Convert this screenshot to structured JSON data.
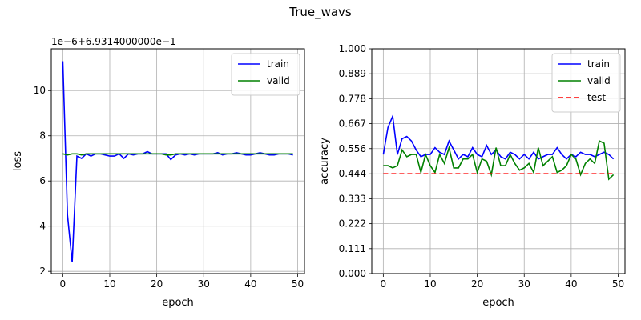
{
  "figure": {
    "title": "True_wavs"
  },
  "colors": {
    "train": "#0000ff",
    "valid": "#008000",
    "test": "#ff0000",
    "grid": "#b0b0b0",
    "axis": "#000000"
  },
  "chart_data": [
    {
      "type": "line",
      "title": "",
      "xlabel": "epoch",
      "ylabel": "loss",
      "offset_text": "1e−6+6.9314000000e−1",
      "xlim": [
        -2.45,
        51.45
      ],
      "ylim": [
        1.9,
        11.85
      ],
      "xticks": [
        0,
        10,
        20,
        30,
        40,
        50
      ],
      "yticks": [
        2,
        4,
        6,
        8,
        10
      ],
      "grid": true,
      "legend_position": "top-right",
      "x": [
        0,
        1,
        2,
        3,
        4,
        5,
        6,
        7,
        8,
        9,
        10,
        11,
        12,
        13,
        14,
        15,
        16,
        17,
        18,
        19,
        20,
        21,
        22,
        23,
        24,
        25,
        26,
        27,
        28,
        29,
        30,
        31,
        32,
        33,
        34,
        35,
        36,
        37,
        38,
        39,
        40,
        41,
        42,
        43,
        44,
        45,
        46,
        47,
        48,
        49
      ],
      "series": [
        {
          "name": "train",
          "color": "train",
          "style": "solid",
          "values": [
            11.3,
            4.5,
            2.4,
            7.1,
            7.0,
            7.2,
            7.1,
            7.2,
            7.2,
            7.15,
            7.1,
            7.1,
            7.2,
            7.0,
            7.2,
            7.15,
            7.2,
            7.2,
            7.3,
            7.2,
            7.2,
            7.2,
            7.2,
            6.95,
            7.15,
            7.2,
            7.15,
            7.2,
            7.15,
            7.2,
            7.2,
            7.2,
            7.2,
            7.25,
            7.15,
            7.2,
            7.2,
            7.25,
            7.2,
            7.15,
            7.15,
            7.2,
            7.25,
            7.2,
            7.15,
            7.15,
            7.2,
            7.2,
            7.2,
            7.15
          ]
        },
        {
          "name": "valid",
          "color": "valid",
          "style": "solid",
          "values": [
            7.2,
            7.15,
            7.2,
            7.2,
            7.15,
            7.2,
            7.2,
            7.2,
            7.2,
            7.2,
            7.2,
            7.2,
            7.2,
            7.2,
            7.2,
            7.2,
            7.2,
            7.2,
            7.2,
            7.2,
            7.2,
            7.2,
            7.15,
            7.15,
            7.2,
            7.2,
            7.2,
            7.2,
            7.2,
            7.2,
            7.2,
            7.2,
            7.2,
            7.2,
            7.2,
            7.2,
            7.2,
            7.2,
            7.2,
            7.2,
            7.2,
            7.2,
            7.2,
            7.2,
            7.2,
            7.2,
            7.2,
            7.2,
            7.2,
            7.2
          ]
        }
      ]
    },
    {
      "type": "line",
      "title": "",
      "xlabel": "epoch",
      "ylabel": "accuracy",
      "xlim": [
        -2.45,
        51.45
      ],
      "ylim": [
        0,
        1
      ],
      "xticks": [
        0,
        10,
        20,
        30,
        40,
        50
      ],
      "yticks": [
        0.0,
        0.111,
        0.222,
        0.333,
        0.444,
        0.556,
        0.667,
        0.778,
        0.889,
        1.0
      ],
      "ytick_labels": [
        "0.000",
        "0.111",
        "0.222",
        "0.333",
        "0.444",
        "0.556",
        "0.667",
        "0.778",
        "0.889",
        "1.000"
      ],
      "grid": true,
      "legend_position": "top-right",
      "x": [
        0,
        1,
        2,
        3,
        4,
        5,
        6,
        7,
        8,
        9,
        10,
        11,
        12,
        13,
        14,
        15,
        16,
        17,
        18,
        19,
        20,
        21,
        22,
        23,
        24,
        25,
        26,
        27,
        28,
        29,
        30,
        31,
        32,
        33,
        34,
        35,
        36,
        37,
        38,
        39,
        40,
        41,
        42,
        43,
        44,
        45,
        46,
        47,
        48,
        49
      ],
      "series": [
        {
          "name": "train",
          "color": "train",
          "style": "solid",
          "values": [
            0.53,
            0.65,
            0.7,
            0.53,
            0.6,
            0.61,
            0.59,
            0.55,
            0.52,
            0.53,
            0.53,
            0.56,
            0.54,
            0.53,
            0.59,
            0.55,
            0.51,
            0.53,
            0.52,
            0.56,
            0.53,
            0.52,
            0.57,
            0.53,
            0.55,
            0.52,
            0.51,
            0.54,
            0.53,
            0.51,
            0.53,
            0.51,
            0.54,
            0.51,
            0.52,
            0.53,
            0.53,
            0.56,
            0.53,
            0.51,
            0.53,
            0.52,
            0.54,
            0.53,
            0.53,
            0.52,
            0.53,
            0.54,
            0.53,
            0.51
          ]
        },
        {
          "name": "valid",
          "color": "valid",
          "style": "solid",
          "values": [
            0.48,
            0.48,
            0.47,
            0.48,
            0.55,
            0.52,
            0.53,
            0.53,
            0.45,
            0.53,
            0.48,
            0.45,
            0.53,
            0.49,
            0.56,
            0.47,
            0.47,
            0.51,
            0.51,
            0.53,
            0.45,
            0.51,
            0.5,
            0.44,
            0.56,
            0.48,
            0.48,
            0.53,
            0.49,
            0.46,
            0.47,
            0.49,
            0.45,
            0.56,
            0.48,
            0.5,
            0.52,
            0.45,
            0.46,
            0.48,
            0.53,
            0.51,
            0.44,
            0.49,
            0.51,
            0.49,
            0.59,
            0.58,
            0.42,
            0.44
          ]
        },
        {
          "name": "test",
          "color": "test",
          "style": "dashed",
          "values": [
            0.444,
            0.444,
            0.444,
            0.444,
            0.444,
            0.444,
            0.444,
            0.444,
            0.444,
            0.444,
            0.444,
            0.444,
            0.444,
            0.444,
            0.444,
            0.444,
            0.444,
            0.444,
            0.444,
            0.444,
            0.444,
            0.444,
            0.444,
            0.444,
            0.444,
            0.444,
            0.444,
            0.444,
            0.444,
            0.444,
            0.444,
            0.444,
            0.444,
            0.444,
            0.444,
            0.444,
            0.444,
            0.444,
            0.444,
            0.444,
            0.444,
            0.444,
            0.444,
            0.444,
            0.444,
            0.444,
            0.444,
            0.444,
            0.444,
            0.444
          ]
        }
      ]
    }
  ]
}
